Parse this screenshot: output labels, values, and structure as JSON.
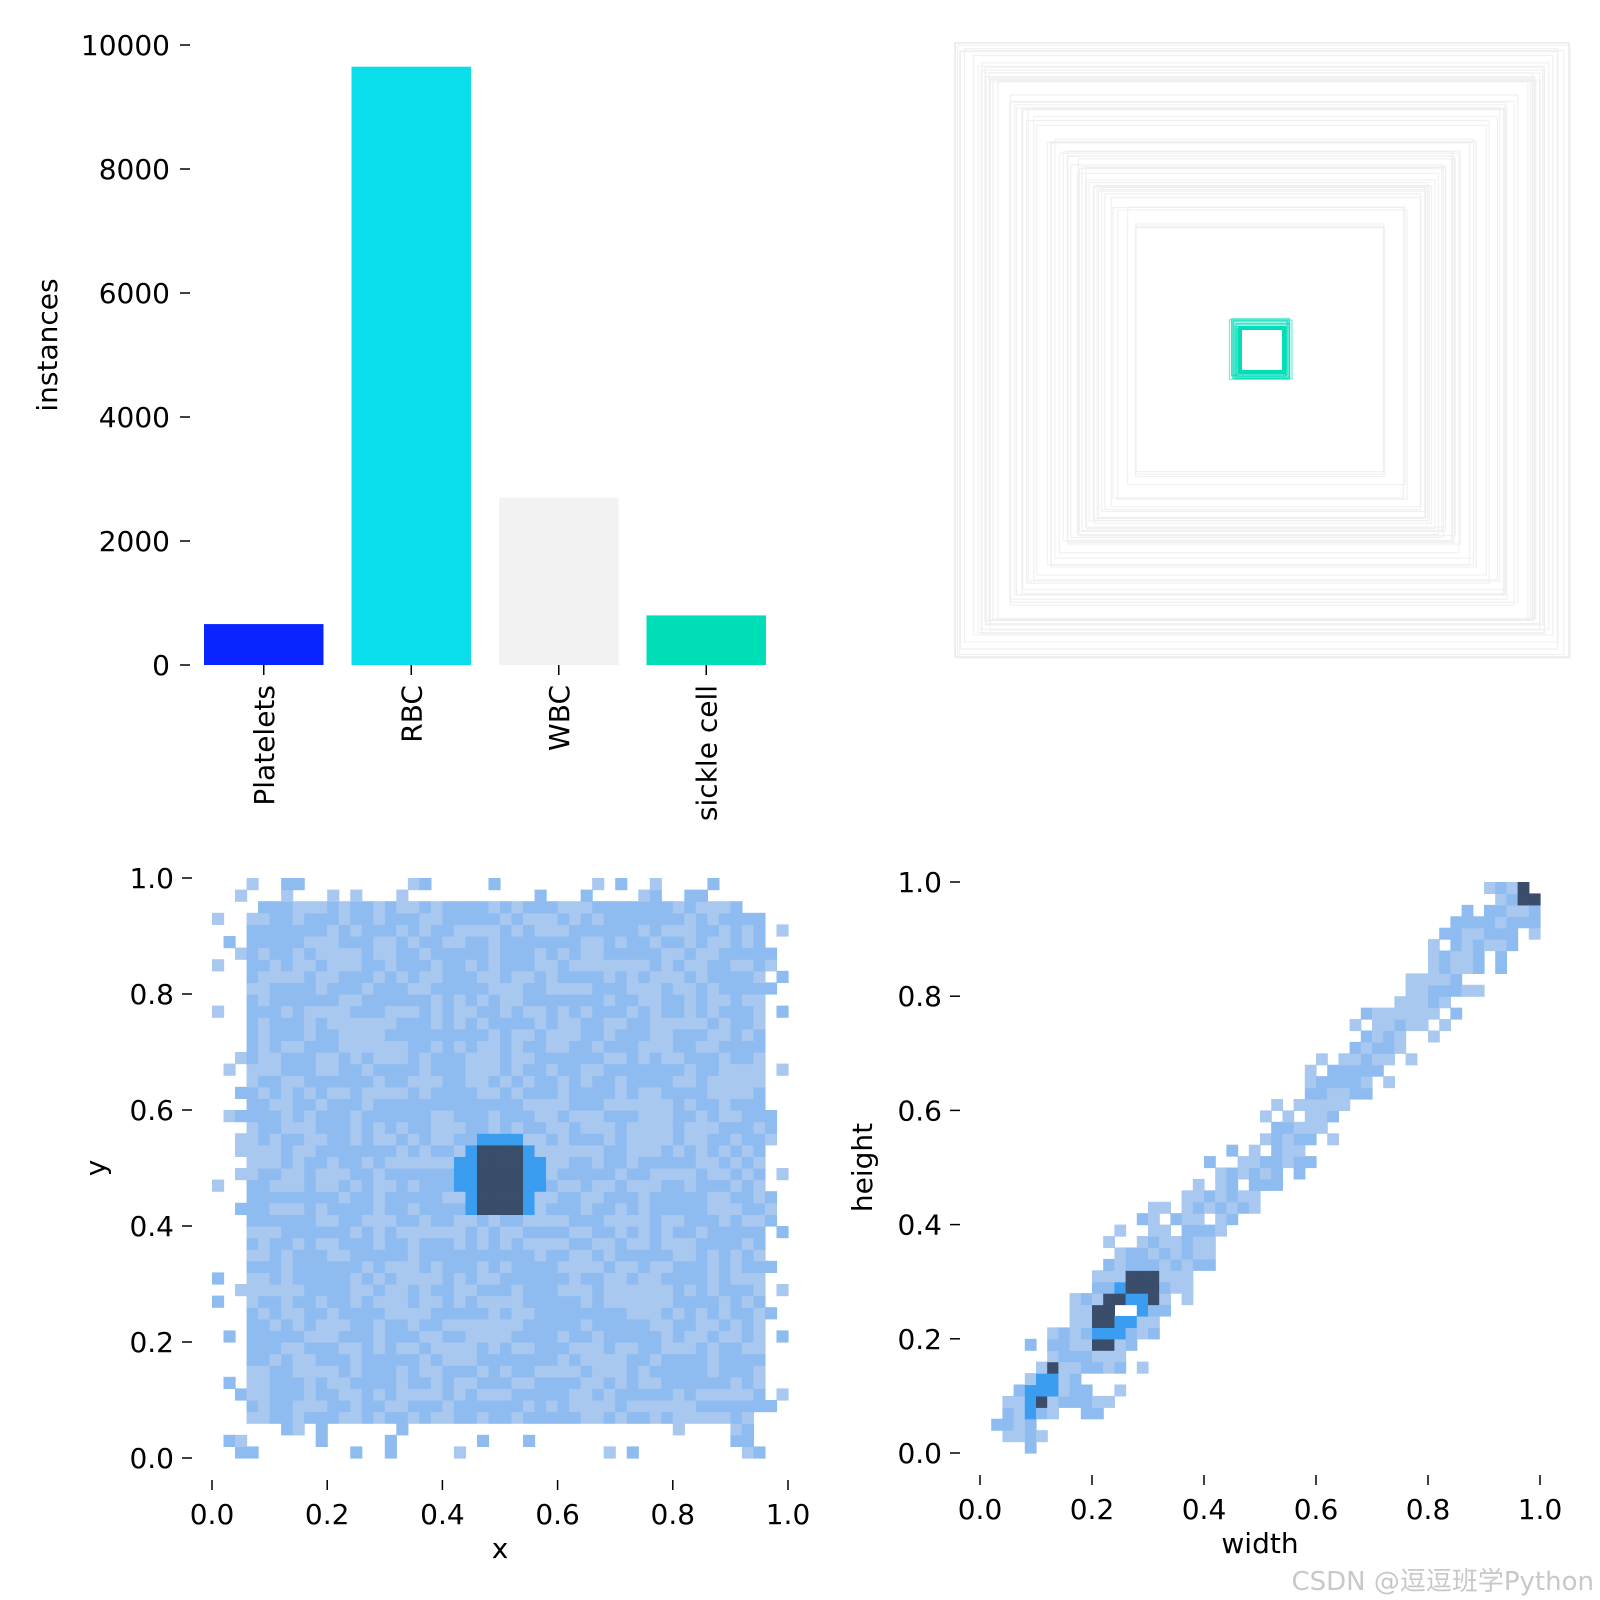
{
  "watermark": "CSDN @逗逗班学Python",
  "chart_data": [
    {
      "type": "bar",
      "categories": [
        "Platelets",
        "RBC",
        "WBC",
        "sickle cell"
      ],
      "values": [
        660,
        9650,
        2700,
        800
      ],
      "colors": [
        "#0a24ff",
        "#0bdeeb",
        "#f2f2f2",
        "#00deb8"
      ],
      "ylabel": "instances",
      "ylim": [
        0,
        10000
      ],
      "yticks": [
        "0",
        "2000",
        "4000",
        "6000",
        "8000",
        "10000"
      ]
    },
    {
      "type": "other",
      "subtype": "nested bounding boxes (label box overlay)",
      "box_colors": [
        "#eeeeee",
        "#00deb8"
      ]
    },
    {
      "type": "heatmap",
      "subtype": "2D histogram",
      "xlabel": "x",
      "ylabel": "y",
      "xlim": [
        0,
        1
      ],
      "ylim": [
        0,
        1
      ],
      "xticks": [
        "0.0",
        "0.2",
        "0.4",
        "0.6",
        "0.8",
        "1.0"
      ],
      "yticks": [
        "0.0",
        "0.2",
        "0.4",
        "0.6",
        "0.8",
        "1.0"
      ],
      "peak_region": {
        "x": [
          0.46,
          0.54
        ],
        "y": [
          0.43,
          0.54
        ]
      },
      "colors": [
        "#a9c8f0",
        "#8fbcf0",
        "#3a9df0",
        "#3a4d6a"
      ]
    },
    {
      "type": "heatmap",
      "subtype": "2D histogram",
      "xlabel": "width",
      "ylabel": "height",
      "xlim": [
        0,
        1
      ],
      "ylim": [
        0,
        1
      ],
      "xticks": [
        "0.0",
        "0.2",
        "0.4",
        "0.6",
        "0.8",
        "1.0"
      ],
      "yticks": [
        "0.0",
        "0.2",
        "0.4",
        "0.6",
        "0.8",
        "1.0"
      ],
      "peak_region": {
        "width": [
          0.2,
          0.32
        ],
        "height": [
          0.2,
          0.32
        ]
      },
      "colors": [
        "#a9c8f0",
        "#8fbcf0",
        "#3a9df0",
        "#3a4d6a"
      ]
    }
  ]
}
